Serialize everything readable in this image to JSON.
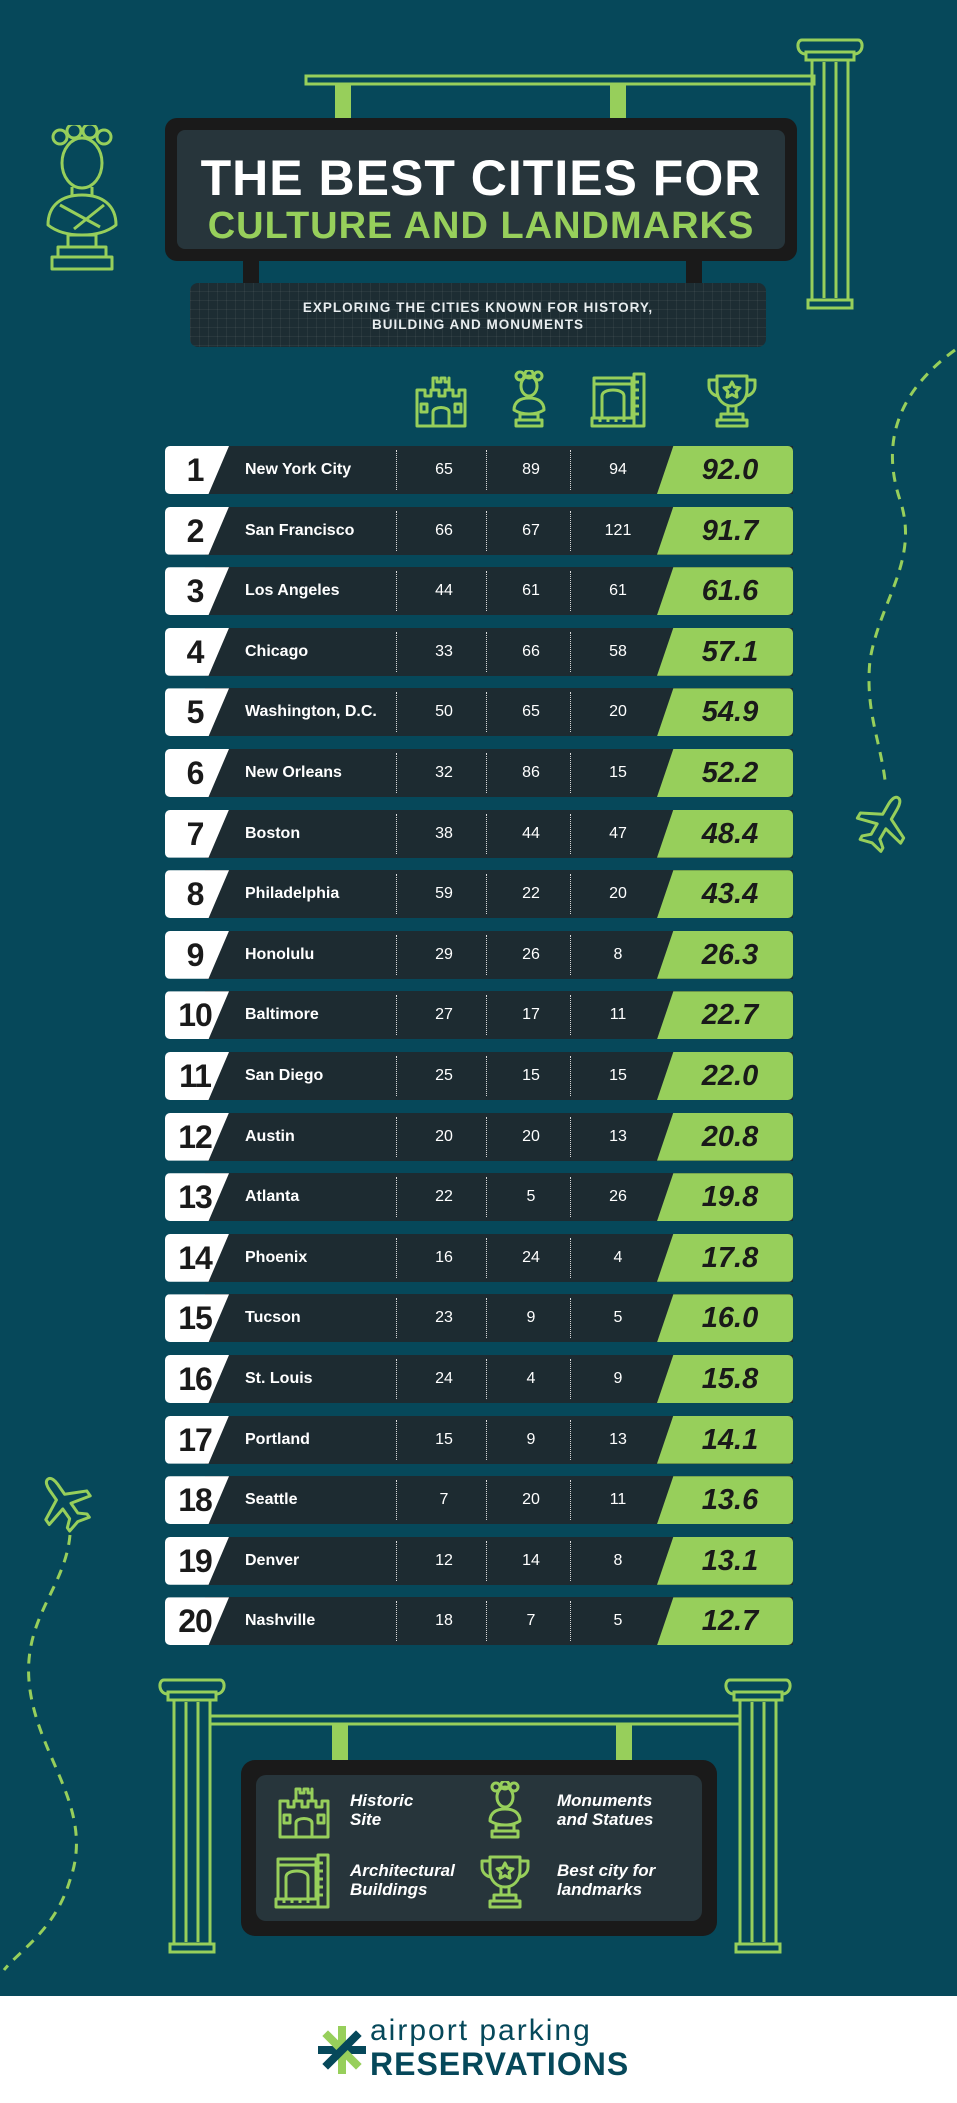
{
  "header": {
    "title_line1": "THE BEST CITIES FOR",
    "title_line2": "CULTURE AND LANDMARKS",
    "subtitle": "EXPLORING THE CITIES KNOWN FOR HISTORY,\nBUILDING AND MONUMENTS"
  },
  "columns": [
    {
      "icon": "castle-icon",
      "meaning": "Historic Site"
    },
    {
      "icon": "bust-statue-icon",
      "meaning": "Monuments and Statues"
    },
    {
      "icon": "arch-building-icon",
      "meaning": "Architectural Buildings"
    },
    {
      "icon": "trophy-star-icon",
      "meaning": "Best city for landmarks"
    }
  ],
  "rows": [
    {
      "rank": "1",
      "city": "New York City",
      "historic": "65",
      "monuments": "89",
      "architecture": "94",
      "score": "92.0"
    },
    {
      "rank": "2",
      "city": "San Francisco",
      "historic": "66",
      "monuments": "67",
      "architecture": "121",
      "score": "91.7"
    },
    {
      "rank": "3",
      "city": "Los Angeles",
      "historic": "44",
      "monuments": "61",
      "architecture": "61",
      "score": "61.6"
    },
    {
      "rank": "4",
      "city": "Chicago",
      "historic": "33",
      "monuments": "66",
      "architecture": "58",
      "score": "57.1"
    },
    {
      "rank": "5",
      "city": "Washington, D.C.",
      "historic": "50",
      "monuments": "65",
      "architecture": "20",
      "score": "54.9"
    },
    {
      "rank": "6",
      "city": "New Orleans",
      "historic": "32",
      "monuments": "86",
      "architecture": "15",
      "score": "52.2"
    },
    {
      "rank": "7",
      "city": "Boston",
      "historic": "38",
      "monuments": "44",
      "architecture": "47",
      "score": "48.4"
    },
    {
      "rank": "8",
      "city": "Philadelphia",
      "historic": "59",
      "monuments": "22",
      "architecture": "20",
      "score": "43.4"
    },
    {
      "rank": "9",
      "city": "Honolulu",
      "historic": "29",
      "monuments": "26",
      "architecture": "8",
      "score": "26.3"
    },
    {
      "rank": "10",
      "city": "Baltimore",
      "historic": "27",
      "monuments": "17",
      "architecture": "11",
      "score": "22.7"
    },
    {
      "rank": "11",
      "city": "San Diego",
      "historic": "25",
      "monuments": "15",
      "architecture": "15",
      "score": "22.0"
    },
    {
      "rank": "12",
      "city": "Austin",
      "historic": "20",
      "monuments": "20",
      "architecture": "13",
      "score": "20.8"
    },
    {
      "rank": "13",
      "city": "Atlanta",
      "historic": "22",
      "monuments": "5",
      "architecture": "26",
      "score": "19.8"
    },
    {
      "rank": "14",
      "city": "Phoenix",
      "historic": "16",
      "monuments": "24",
      "architecture": "4",
      "score": "17.8"
    },
    {
      "rank": "15",
      "city": "Tucson",
      "historic": "23",
      "monuments": "9",
      "architecture": "5",
      "score": "16.0"
    },
    {
      "rank": "16",
      "city": "St. Louis",
      "historic": "24",
      "monuments": "4",
      "architecture": "9",
      "score": "15.8"
    },
    {
      "rank": "17",
      "city": "Portland",
      "historic": "15",
      "monuments": "9",
      "architecture": "13",
      "score": "14.1"
    },
    {
      "rank": "18",
      "city": "Seattle",
      "historic": "7",
      "monuments": "20",
      "architecture": "11",
      "score": "13.6"
    },
    {
      "rank": "19",
      "city": "Denver",
      "historic": "12",
      "monuments": "14",
      "architecture": "8",
      "score": "13.1"
    },
    {
      "rank": "20",
      "city": "Nashville",
      "historic": "18",
      "monuments": "7",
      "architecture": "5",
      "score": "12.7"
    }
  ],
  "legend": {
    "historic": "Historic\nSite",
    "monuments": "Monuments\nand Statues",
    "architecture": "Architectural\nBuildings",
    "best": "Best city for\nlandmarks"
  },
  "footer": {
    "brand_top": "airport parking",
    "brand_bottom": "RESERVATIONS"
  },
  "colors": {
    "background": "#06485a",
    "accent": "#97cf5b",
    "row_dark": "#1d2b31",
    "sign": "#1a1a1a"
  }
}
